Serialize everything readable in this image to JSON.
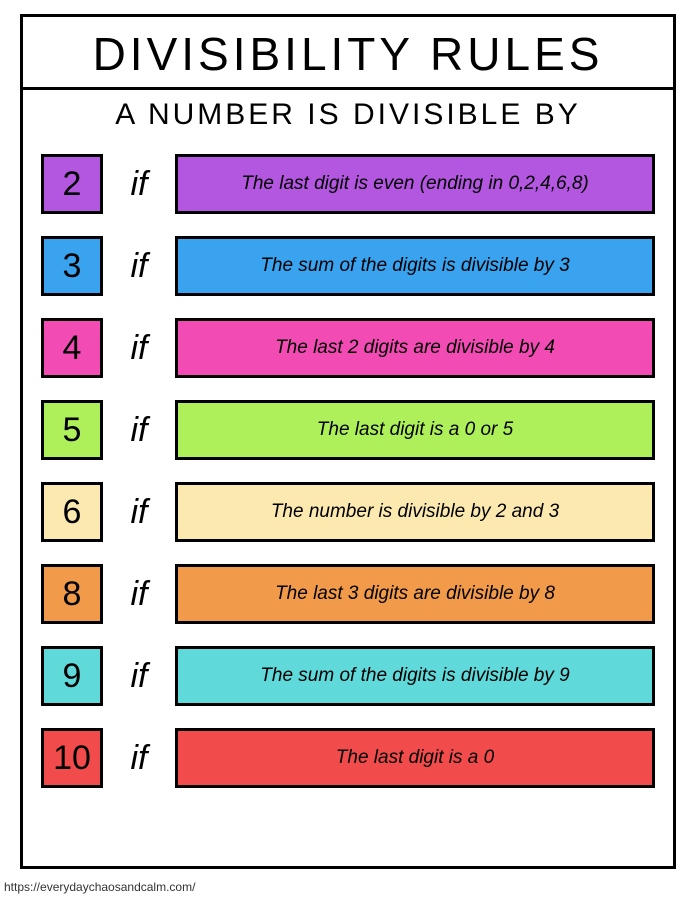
{
  "title": "DIVISIBILITY RULES",
  "subtitle": "A NUMBER IS DIVISIBLE BY",
  "if_label": "if",
  "footer": "https://everydaychaosandcalm.com/",
  "rules": [
    {
      "num": "2",
      "text": "The last digit is even (ending in 0,2,4,6,8)",
      "color": "#b356e0"
    },
    {
      "num": "3",
      "text": "The sum of the digits is divisible by 3",
      "color": "#3aa3ef"
    },
    {
      "num": "4",
      "text": "The last 2 digits are divisible by 4",
      "color": "#f24bb4"
    },
    {
      "num": "5",
      "text": "The last digit is a 0 or 5",
      "color": "#aef05a"
    },
    {
      "num": "6",
      "text": "The number is divisible by 2 and 3",
      "color": "#fce9b0"
    },
    {
      "num": "8",
      "text": "The last 3 digits are divisible by 8",
      "color": "#f09a4a"
    },
    {
      "num": "9",
      "text": "The sum of the digits is divisible by 9",
      "color": "#5fd9d9"
    },
    {
      "num": "10",
      "text": "The last digit is a 0",
      "color": "#f24b4b"
    }
  ],
  "style": {
    "border_color": "#000000",
    "background": "#ffffff",
    "title_fontsize": 46,
    "subtitle_fontsize": 30,
    "row_fontsize": 19
  }
}
